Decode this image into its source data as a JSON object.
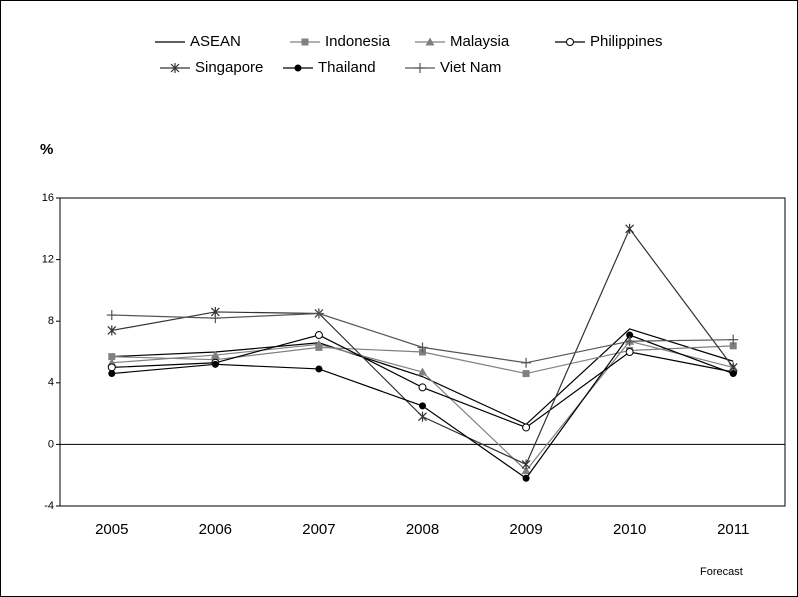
{
  "chart_data": {
    "type": "line",
    "y_label": "%",
    "annotation": "Forecast",
    "categories": [
      "2005",
      "2006",
      "2007",
      "2008",
      "2009",
      "2010",
      "2011"
    ],
    "ylim": [
      -4,
      16
    ],
    "yticks": [
      -4,
      0,
      4,
      8,
      12,
      16
    ],
    "series": [
      {
        "name": "ASEAN",
        "color": "#000000",
        "marker": "none",
        "values": [
          5.7,
          6.0,
          6.6,
          4.4,
          1.3,
          7.5,
          5.4
        ]
      },
      {
        "name": "Indonesia",
        "color": "#808080",
        "marker": "square",
        "values": [
          5.7,
          5.5,
          6.3,
          6.0,
          4.6,
          6.1,
          6.4
        ]
      },
      {
        "name": "Malaysia",
        "color": "#808080",
        "marker": "triangle",
        "values": [
          5.3,
          5.8,
          6.5,
          4.7,
          -1.7,
          6.7,
          5.0
        ]
      },
      {
        "name": "Philippines",
        "color": "#000000",
        "marker": "open-circle",
        "values": [
          5.0,
          5.3,
          7.1,
          3.7,
          1.1,
          6.0,
          4.7
        ]
      },
      {
        "name": "Singapore",
        "color": "#333333",
        "marker": "asterisk",
        "values": [
          7.4,
          8.6,
          8.5,
          1.8,
          -1.3,
          14.0,
          5.0
        ]
      },
      {
        "name": "Thailand",
        "color": "#000000",
        "marker": "circle",
        "values": [
          4.6,
          5.2,
          4.9,
          2.5,
          -2.2,
          7.1,
          4.6
        ]
      },
      {
        "name": "Viet Nam",
        "color": "#555555",
        "marker": "plus",
        "values": [
          8.4,
          8.2,
          8.5,
          6.3,
          5.3,
          6.7,
          6.8
        ]
      }
    ]
  }
}
